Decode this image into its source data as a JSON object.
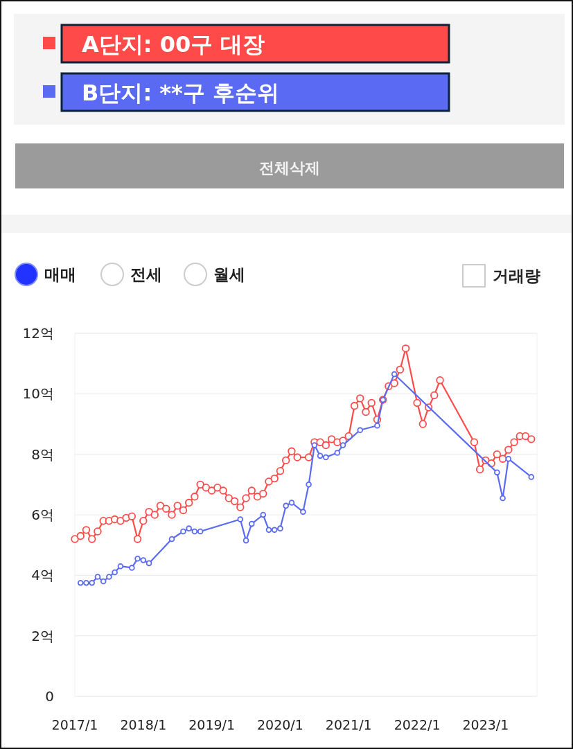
{
  "chart_data": {
    "type": "line",
    "marker": "circle",
    "grid": "y",
    "legend": "top left",
    "annotations": [
      "전체삭제",
      "매매",
      "전세",
      "월세",
      "거래량"
    ],
    "xlim": [
      "2017-01",
      "2023-10"
    ],
    "xticks": [
      {
        "value": "2017-01",
        "label": "2017/1"
      },
      {
        "value": "2018-01",
        "label": "2018/1"
      },
      {
        "value": "2019-01",
        "label": "2019/1"
      },
      {
        "value": "2020-01",
        "label": "2020/1"
      },
      {
        "value": "2021-01",
        "label": "2021/1"
      },
      {
        "value": "2022-01",
        "label": "2022/1"
      },
      {
        "value": "2023-01",
        "label": "2023/1"
      }
    ],
    "ylim": [
      0,
      12
    ],
    "yticks": [
      0,
      {
        "value": 2,
        "label": "2억"
      },
      {
        "value": 4,
        "label": "4억"
      },
      {
        "value": 6,
        "label": "6억"
      },
      {
        "value": 8,
        "label": "8억"
      },
      {
        "value": 10,
        "label": "10억"
      },
      {
        "value": 12,
        "label": "12억"
      }
    ],
    "series": [
      {
        "name": "A단지: 00구 대장",
        "color": "#ff4a4a",
        "x": [
          "2017-01",
          "2017-02",
          "2017-03",
          "2017-04",
          "2017-05",
          "2017-06",
          "2017-07",
          "2017-08",
          "2017-09",
          "2017-10",
          "2017-11",
          "2017-12",
          "2018-01",
          "2018-02",
          "2018-03",
          "2018-04",
          "2018-05",
          "2018-06",
          "2018-07",
          "2018-08",
          "2018-09",
          "2018-10",
          "2018-11",
          "2018-12",
          "2019-01",
          "2019-02",
          "2019-03",
          "2019-04",
          "2019-05",
          "2019-06",
          "2019-07",
          "2019-08",
          "2019-09",
          "2019-10",
          "2019-11",
          "2019-12",
          "2020-01",
          "2020-02",
          "2020-03",
          "2020-04",
          "2020-06",
          "2020-07",
          "2020-08",
          "2020-09",
          "2020-10",
          "2020-11",
          "2020-12",
          "2021-01",
          "2021-02",
          "2021-03",
          "2021-04",
          "2021-05",
          "2021-06",
          "2021-07",
          "2021-08",
          "2021-09",
          "2021-10",
          "2021-11",
          "2022-01",
          "2022-02",
          "2022-03",
          "2022-04",
          "2022-05",
          "2022-11",
          "2022-12",
          "2023-01",
          "2023-02",
          "2023-03",
          "2023-04",
          "2023-05",
          "2023-06",
          "2023-07",
          "2023-08",
          "2023-09"
        ],
        "values": [
          5.2,
          5.3,
          5.5,
          5.2,
          5.45,
          5.8,
          5.8,
          5.85,
          5.8,
          5.9,
          5.95,
          5.2,
          5.8,
          6.1,
          6.0,
          6.3,
          6.2,
          6.0,
          6.3,
          6.15,
          6.4,
          6.6,
          7.0,
          6.9,
          6.8,
          6.9,
          6.8,
          6.55,
          6.45,
          6.25,
          6.55,
          6.8,
          6.6,
          6.7,
          7.1,
          7.2,
          7.45,
          7.8,
          8.1,
          7.9,
          7.9,
          8.4,
          8.4,
          8.3,
          8.5,
          8.4,
          8.45,
          8.6,
          9.6,
          9.85,
          9.4,
          9.7,
          9.15,
          9.8,
          10.25,
          10.35,
          10.8,
          11.5,
          9.7,
          9.0,
          9.55,
          9.95,
          10.45,
          8.4,
          7.5,
          7.8,
          7.7,
          8.0,
          7.85,
          8.15,
          8.4,
          8.6,
          8.6,
          8.5
        ]
      },
      {
        "name": "B단지: **구 후순위",
        "color": "#5a6af2",
        "x": [
          "2017-02",
          "2017-03",
          "2017-04",
          "2017-05",
          "2017-06",
          "2017-07",
          "2017-08",
          "2017-09",
          "2017-11",
          "2017-12",
          "2018-01",
          "2018-02",
          "2018-06",
          "2018-08",
          "2018-09",
          "2018-10",
          "2018-11",
          "2019-06",
          "2019-07",
          "2019-08",
          "2019-10",
          "2019-11",
          "2019-12",
          "2020-01",
          "2020-02",
          "2020-03",
          "2020-05",
          "2020-06",
          "2020-07",
          "2020-08",
          "2020-09",
          "2020-11",
          "2020-12",
          "2021-03",
          "2021-06",
          "2021-07",
          "2021-09",
          "2023-03",
          "2023-04",
          "2023-05",
          "2023-09"
        ],
        "values": [
          3.75,
          3.75,
          3.75,
          3.95,
          3.8,
          3.95,
          4.1,
          4.3,
          4.25,
          4.55,
          4.5,
          4.4,
          5.2,
          5.45,
          5.55,
          5.45,
          5.45,
          5.85,
          5.15,
          5.7,
          6.0,
          5.5,
          5.5,
          5.55,
          6.3,
          6.4,
          6.1,
          7.0,
          8.3,
          7.95,
          7.9,
          8.05,
          8.3,
          8.8,
          8.95,
          9.8,
          10.65,
          7.4,
          6.55,
          7.85,
          7.25
        ]
      }
    ]
  }
}
